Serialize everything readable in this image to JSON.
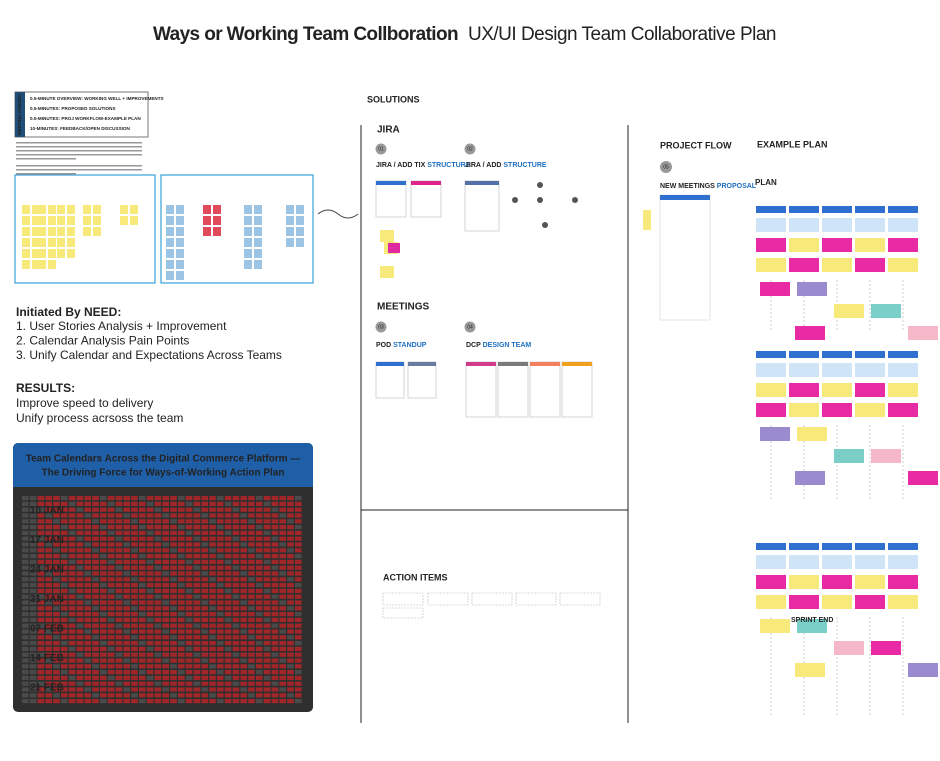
{
  "header": {
    "title_bold": "Ways or Working Team Collboration",
    "title_light": "UX/UI Design Team Collaborative Plan"
  },
  "agenda": {
    "label": "MEETING AGENDA",
    "items": [
      "0.5-MINUTE OVERVIEW: WORKING WELL + IMPROVEMENTS",
      "0.5-MINUTES: PROPOSED SOLUTIONS",
      "0.5-MINUTES: PROJ WORKFLOW-EXAMPLE PLAN",
      "10-MINUTES: FEEDBACK/OPEN DISCUSSION"
    ]
  },
  "initiated": {
    "heading": "Initiated By NEED:",
    "items": [
      "1. User Stories Analysis + Improvement",
      "2. Calendar Analysis Pain Points",
      "3. Unify Calendar and Expectations Across Teams"
    ]
  },
  "results": {
    "heading": "RESULTS:",
    "items": [
      "Improve speed to delivery",
      "Unify process acrsoss the team"
    ]
  },
  "calendar": {
    "title_lines": [
      "Team Calendars Across the Digital Commerce Platform —",
      "The Driving Force for Ways-of-Working Action Plan"
    ],
    "weeks": [
      "10 JAN",
      "17 JAN",
      "24 JAN",
      "31 JAN",
      "07 FEB",
      "14 FEB",
      "21 FEB"
    ]
  },
  "solutions": {
    "heading": "SOLUTIONS",
    "jira": "JIRA",
    "meetings": "MEETINGS",
    "cards": [
      {
        "badge": "01",
        "prefix": "JIRA / ADD TIX ",
        "accent": "STRUCTURE"
      },
      {
        "badge": "02",
        "prefix": "JIRA / ADD ",
        "accent": "STRUCTURE"
      },
      {
        "badge": "03",
        "prefix": "POD ",
        "accent": "STANDUP"
      },
      {
        "badge": "04",
        "prefix": "DCP ",
        "accent": "DESIGN TEAM"
      }
    ]
  },
  "action_items": "ACTION ITEMS",
  "project_flow": {
    "heading": "PROJECT FLOW",
    "badge": "05",
    "prefix": "NEW MEETINGS ",
    "accent": "PROPOSAL"
  },
  "example_plan": {
    "heading": "EXAMPLE PLAN",
    "plan": "PLAN",
    "sprint_end": "SPRINT END"
  }
}
